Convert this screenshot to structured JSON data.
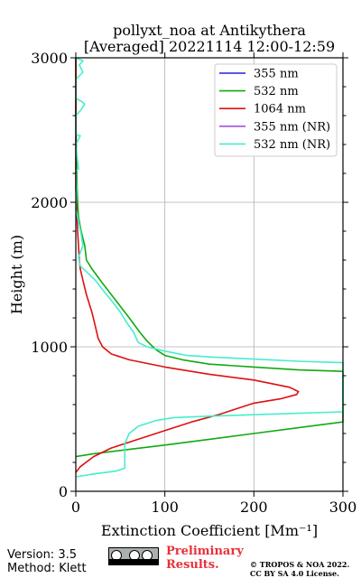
{
  "chart_data": {
    "type": "line",
    "title": [
      "pollyxt_noa at Antikythera",
      "[Averaged] 20221114 12:00-12:59"
    ],
    "xlabel": "Extinction Coefficient [Mm⁻¹]",
    "ylabel": "Height (m)",
    "xlim": [
      0,
      300
    ],
    "ylim": [
      0,
      3000
    ],
    "xticks": [
      0,
      100,
      200,
      300
    ],
    "yticks": [
      0,
      1000,
      2000,
      3000
    ],
    "grid": true,
    "legend_position": "top-right",
    "series": [
      {
        "name": "355 nm",
        "color": "#1f23d6",
        "points": []
      },
      {
        "name": "532 nm",
        "color": "#11aa11",
        "points": [
          [
            0,
            240
          ],
          [
            20,
            260
          ],
          [
            60,
            290
          ],
          [
            100,
            320
          ],
          [
            150,
            360
          ],
          [
            200,
            400
          ],
          [
            250,
            440
          ],
          [
            300,
            480
          ],
          [
            300,
            830
          ],
          [
            250,
            840
          ],
          [
            200,
            860
          ],
          [
            150,
            880
          ],
          [
            120,
            910
          ],
          [
            100,
            940
          ],
          [
            90,
            980
          ],
          [
            80,
            1040
          ],
          [
            72,
            1100
          ],
          [
            60,
            1200
          ],
          [
            45,
            1320
          ],
          [
            30,
            1440
          ],
          [
            18,
            1540
          ],
          [
            12,
            1600
          ],
          [
            10,
            1700
          ],
          [
            6,
            1800
          ],
          [
            3,
            1900
          ],
          [
            2,
            2000
          ],
          [
            1,
            2200
          ],
          [
            0,
            2600
          ],
          [
            0,
            3000
          ]
        ]
      },
      {
        "name": "1064 nm",
        "color": "#dd1111",
        "points": [
          [
            0,
            130
          ],
          [
            5,
            170
          ],
          [
            20,
            240
          ],
          [
            40,
            300
          ],
          [
            70,
            360
          ],
          [
            100,
            420
          ],
          [
            130,
            480
          ],
          [
            160,
            530
          ],
          [
            180,
            570
          ],
          [
            200,
            610
          ],
          [
            230,
            640
          ],
          [
            248,
            670
          ],
          [
            250,
            690
          ],
          [
            240,
            720
          ],
          [
            200,
            770
          ],
          [
            150,
            810
          ],
          [
            100,
            860
          ],
          [
            60,
            910
          ],
          [
            40,
            950
          ],
          [
            30,
            1000
          ],
          [
            25,
            1060
          ],
          [
            22,
            1140
          ],
          [
            18,
            1240
          ],
          [
            12,
            1360
          ],
          [
            8,
            1460
          ],
          [
            5,
            1540
          ],
          [
            4,
            1600
          ],
          [
            3,
            1700
          ],
          [
            2,
            1800
          ],
          [
            1,
            1950
          ],
          [
            0,
            2100
          ],
          [
            0,
            3000
          ]
        ]
      },
      {
        "name": "355 nm (NR)",
        "color": "#9b55e0",
        "points": []
      },
      {
        "name": "532 nm (NR)",
        "color": "#44eecc",
        "points": [
          [
            0,
            100
          ],
          [
            20,
            120
          ],
          [
            45,
            140
          ],
          [
            55,
            160
          ],
          [
            55,
            240
          ],
          [
            55,
            330
          ],
          [
            60,
            400
          ],
          [
            70,
            450
          ],
          [
            90,
            490
          ],
          [
            110,
            510
          ],
          [
            150,
            520
          ],
          [
            200,
            530
          ],
          [
            300,
            550
          ],
          [
            300,
            890
          ],
          [
            250,
            900
          ],
          [
            200,
            915
          ],
          [
            150,
            930
          ],
          [
            125,
            940
          ],
          [
            100,
            970
          ],
          [
            80,
            1000
          ],
          [
            70,
            1030
          ],
          [
            65,
            1100
          ],
          [
            58,
            1160
          ],
          [
            50,
            1240
          ],
          [
            40,
            1320
          ],
          [
            32,
            1380
          ],
          [
            22,
            1460
          ],
          [
            12,
            1520
          ],
          [
            5,
            1560
          ],
          [
            3,
            1620
          ],
          [
            8,
            1700
          ],
          [
            6,
            1780
          ],
          [
            4,
            1840
          ],
          [
            2,
            1900
          ],
          [
            0,
            1950
          ],
          [
            1,
            2100
          ],
          [
            0,
            2220
          ],
          [
            3,
            2230
          ],
          [
            0,
            2400
          ],
          [
            5,
            2460
          ],
          [
            0,
            2470
          ],
          [
            0,
            2600
          ],
          [
            6,
            2640
          ],
          [
            10,
            2680
          ],
          [
            6,
            2700
          ],
          [
            0,
            2720
          ],
          [
            0,
            2850
          ],
          [
            8,
            2900
          ],
          [
            4,
            2950
          ],
          [
            8,
            2980
          ],
          [
            0,
            3000
          ]
        ]
      }
    ]
  },
  "footer": {
    "version": "Version: 3.5",
    "method": "Method: Klett",
    "preliminary_line1": "Preliminary",
    "preliminary_line2": "Results.",
    "copyright_line1": "© TROPOS & NOA 2022.",
    "copyright_line2": "CC BY SA 4.0 License."
  }
}
